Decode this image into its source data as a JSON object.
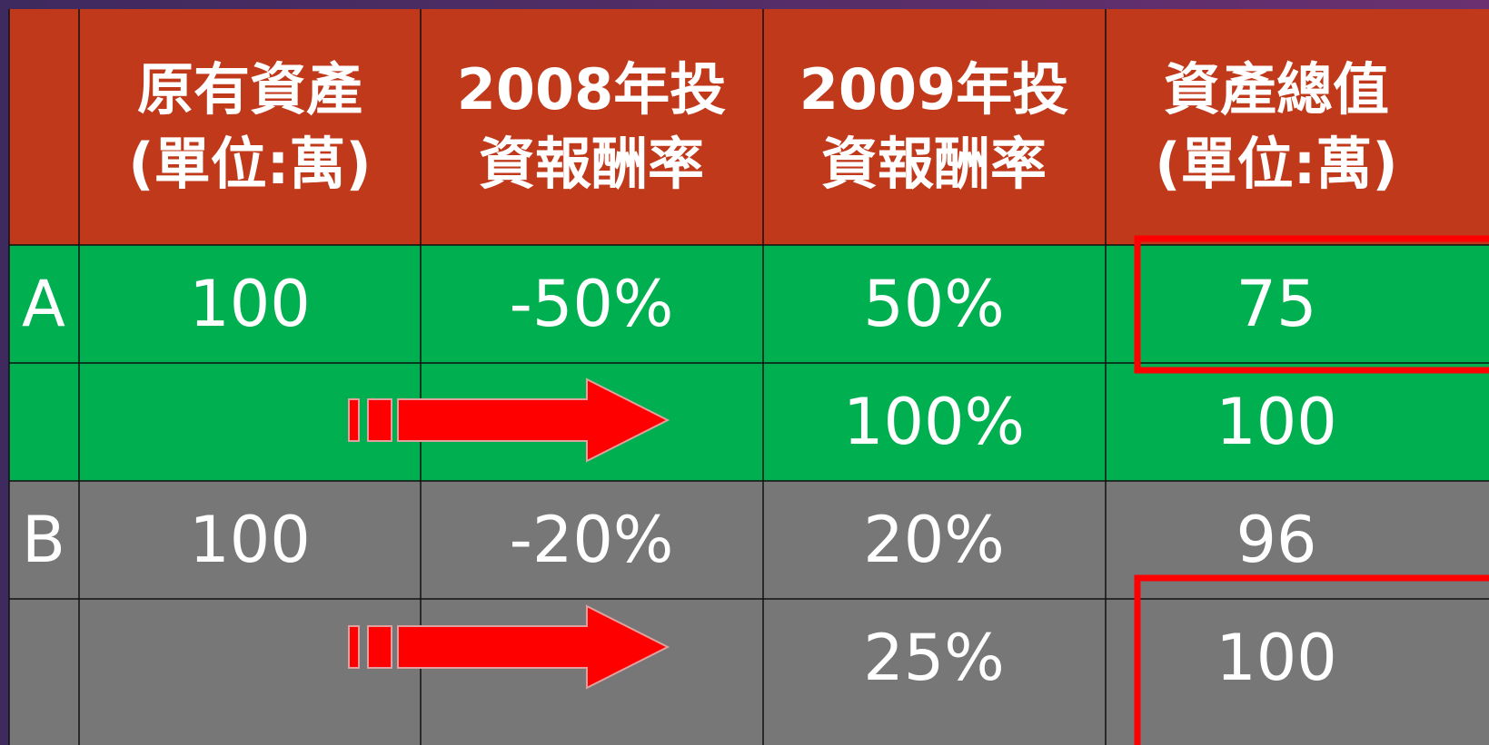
{
  "header": [
    [
      "原有資產",
      "(單位:萬)"
    ],
    [
      "2008年投",
      "資報酬率"
    ],
    [
      "2009年投",
      "資報酬率"
    ],
    [
      "資產總值",
      "(單位:萬)"
    ]
  ],
  "rows": [
    {
      "label": "A",
      "original": "100",
      "r2008": "-50%",
      "r2009": "50%",
      "total": "75"
    },
    {
      "r2009": "100%",
      "total": "100"
    },
    {
      "label": "B",
      "original": "100",
      "r2008": "-20%",
      "r2009": "20%",
      "total": "96"
    },
    {
      "r2009": "25%",
      "total": "100"
    }
  ]
}
